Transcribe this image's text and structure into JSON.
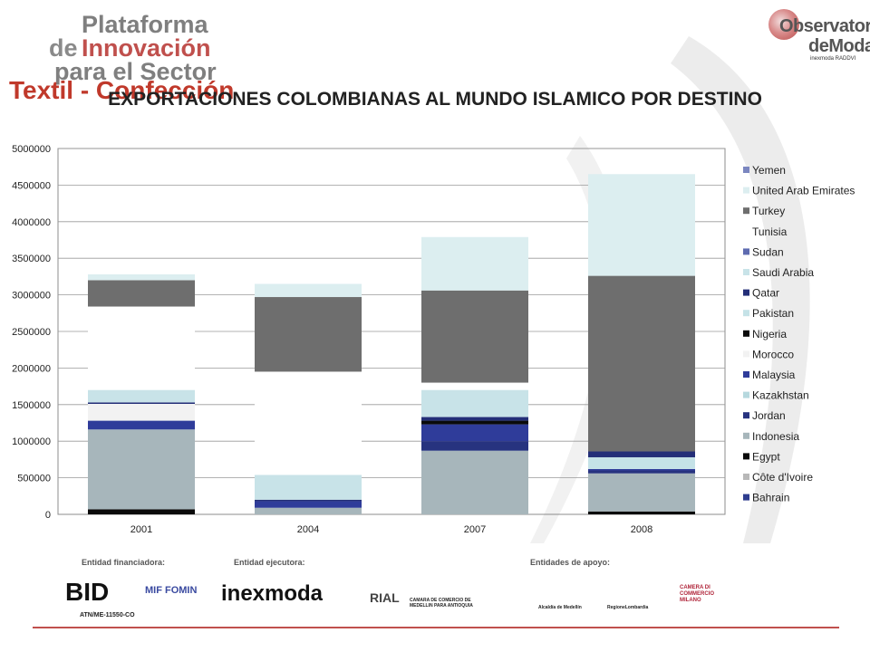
{
  "header": {
    "left_logo_lines": [
      "Plataforma",
      "de",
      "Innovación",
      "para el Sector",
      "Textil - Confección"
    ],
    "right_logo_lines": [
      "Observatorio",
      "deModa",
      "inexmoda  RADDVI"
    ]
  },
  "chart_data": {
    "type": "bar",
    "stacked": true,
    "title": "EXPORTACIONES COLOMBIANAS AL MUNDO ISLAMICO POR DESTINO",
    "categories": [
      "2001",
      "2004",
      "2007",
      "2008"
    ],
    "ylim": [
      0,
      5000000
    ],
    "yticks": [
      "0",
      "500000",
      "1000000",
      "1500000",
      "2000000",
      "2500000",
      "3000000",
      "3500000",
      "4000000",
      "4500000",
      "5000000"
    ],
    "grid": true,
    "legend_position": "right",
    "series": [
      {
        "name": "Bahrain",
        "color": "#2e3d8f",
        "values": [
          0,
          0,
          0,
          0
        ]
      },
      {
        "name": "Côte d'Ivoire",
        "color": "#b8b8b8",
        "values": [
          0,
          0,
          0,
          0
        ]
      },
      {
        "name": "Egypt",
        "color": "#0a0a0a",
        "values": [
          70000,
          0,
          0,
          40000
        ]
      },
      {
        "name": "Indonesia",
        "color": "#a7b6bb",
        "values": [
          1090000,
          90000,
          870000,
          520000
        ]
      },
      {
        "name": "Jordan",
        "color": "#27337f",
        "values": [
          0,
          0,
          130000,
          40000
        ]
      },
      {
        "name": "Kazakhstan",
        "color": "#b6d8de",
        "values": [
          0,
          0,
          0,
          0
        ]
      },
      {
        "name": "Malaysia",
        "color": "#2f3c9a",
        "values": [
          120000,
          90000,
          230000,
          20000
        ]
      },
      {
        "name": "Morocco",
        "color": "#f2f2f2",
        "values": [
          230000,
          0,
          0,
          0
        ]
      },
      {
        "name": "Nigeria",
        "color": "#0a0a0a",
        "values": [
          0,
          0,
          50000,
          0
        ]
      },
      {
        "name": "Pakistan",
        "color": "#c5e2e7",
        "values": [
          0,
          0,
          0,
          160000
        ]
      },
      {
        "name": "Qatar",
        "color": "#232e78",
        "values": [
          20000,
          20000,
          50000,
          80000
        ]
      },
      {
        "name": "Saudi Arabia",
        "color": "#c8e3e8",
        "values": [
          170000,
          340000,
          370000,
          0
        ]
      },
      {
        "name": "Sudan",
        "color": "#5e6bb0",
        "values": [
          0,
          0,
          0,
          0
        ]
      },
      {
        "name": "Tunisia",
        "color": "#ffffff",
        "values": [
          1140000,
          1410000,
          100000,
          0
        ]
      },
      {
        "name": "Turkey",
        "color": "#6e6e6e",
        "values": [
          360000,
          1020000,
          1260000,
          2400000
        ]
      },
      {
        "name": "United Arab Emirates",
        "color": "#dceef0",
        "values": [
          80000,
          180000,
          730000,
          1390000
        ]
      },
      {
        "name": "Yemen",
        "color": "#7b86c0",
        "values": [
          0,
          0,
          0,
          0
        ]
      }
    ]
  },
  "footer": {
    "labels": [
      "Entidad financiadora:",
      "Entidad ejecutora:",
      "Entidades de apoyo:"
    ],
    "items": [
      "BID",
      "MIF FOMIN",
      "ATN/ME-11550-CO",
      "inexmoda",
      "RIAL",
      "CAMARA DE COMERCIO DE MEDELLIN PARA ANTIOQUIA",
      "Alcaldía de Medellín",
      "RegioneLombardia",
      "CAMERA DI COMMERCIO MILANO"
    ]
  },
  "colors": {
    "accent": "#c0504d",
    "title": "#222222",
    "grid": "#8c8c8c"
  }
}
